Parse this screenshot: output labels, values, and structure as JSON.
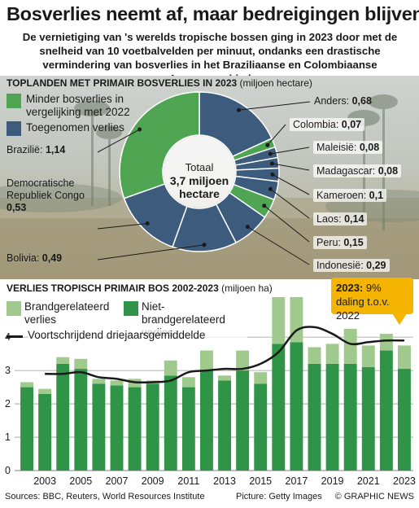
{
  "title": "Bosverlies neemt af, maar bedreigingen blijven",
  "subtitle": "De vernietiging van 's werelds tropische bossen ging  in 2023 door met de snelheid van 10 voetbalvelden per minuut, ondanks een drastische vermindering van bosverlies in het Braziliaanse en Colombiaanse Amazonegebied",
  "top_section": {
    "heading": "TOPLANDEN MET PRIMAIR BOSVERLIES IN 2023",
    "unit": "(miljoen hectare)",
    "legend": [
      {
        "label": "Minder bosverlies in vergelijking met 2022",
        "color": "#4fa552"
      },
      {
        "label": "Toegenomen verlies",
        "color": "#3d5c7d"
      }
    ],
    "center_label": "Totaal",
    "center_value": "3,7 miljoen hectare"
  },
  "bar_section": {
    "heading": "VERLIES TROPISCH PRIMAIR BOS 2002-2023",
    "unit": "(miljoen ha)",
    "callout_bold": "2023:",
    "callout_text": "9% daling t.o.v. 2022",
    "legend": [
      {
        "label": "Brandgerelateerd verlies",
        "color": "#9fc98d"
      },
      {
        "label": "Niet-brandgerelateerd verlies",
        "color": "#2f9447"
      },
      {
        "label": "Voortschrijdend driejaarsgemiddelde",
        "color": "#1a1a1a"
      }
    ]
  },
  "footer": {
    "sources": "Sources: BBC, Reuters, World Resources Institute",
    "picture": "Picture: Getty Images",
    "brand": "© GRAPHIC NEWS"
  },
  "chart_data": [
    {
      "type": "pie",
      "title": "TOPLANDEN MET PRIMAIR BOSVERLIES IN 2023",
      "unit": "(miljoen hectare)",
      "slices": [
        {
          "name": "Anders",
          "value": 0.68,
          "value_label": "0,68",
          "group": "Toegenomen verlies"
        },
        {
          "name": "Colombia",
          "value": 0.07,
          "value_label": "0,07",
          "group": "Minder bosverlies in vergelijking met 2022"
        },
        {
          "name": "Maleisië",
          "value": 0.08,
          "value_label": "0,08",
          "group": "Toegenomen verlies"
        },
        {
          "name": "Madagascar",
          "value": 0.08,
          "value_label": "0,08",
          "group": "Toegenomen verlies"
        },
        {
          "name": "Kameroen",
          "value": 0.1,
          "value_label": "0,1",
          "group": "Toegenomen verlies"
        },
        {
          "name": "Laos",
          "value": 0.14,
          "value_label": "0,14",
          "group": "Toegenomen verlies"
        },
        {
          "name": "Peru",
          "value": 0.15,
          "value_label": "0,15",
          "group": "Minder bosverlies in vergelijking met 2022"
        },
        {
          "name": "Indonesië",
          "value": 0.29,
          "value_label": "0,29",
          "group": "Toegenomen verlies"
        },
        {
          "name": "Bolivia",
          "value": 0.49,
          "value_label": "0,49",
          "group": "Toegenomen verlies"
        },
        {
          "name": "Democratische Republiek Congo",
          "value": 0.53,
          "value_label": "0,53",
          "group": "Toegenomen verlies"
        },
        {
          "name": "Brazilië",
          "value": 1.14,
          "value_label": "1,14",
          "group": "Minder bosverlies in vergelijking met 2022"
        }
      ],
      "total_label": "Totaal 3,7 miljoen hectare"
    },
    {
      "type": "bar",
      "stacked": true,
      "title": "VERLIES TROPISCH PRIMAIR BOS 2002-2023",
      "ylabel": "(miljoen ha)",
      "ylim": [
        0,
        5.2
      ],
      "yticks": [
        0,
        1,
        2,
        3,
        4
      ],
      "grid": true,
      "x": [
        2002,
        2003,
        2004,
        2005,
        2006,
        2007,
        2008,
        2009,
        2010,
        2011,
        2012,
        2013,
        2014,
        2015,
        2016,
        2017,
        2018,
        2019,
        2020,
        2021,
        2022,
        2023
      ],
      "xtick_labels": [
        "2003",
        "2005",
        "2007",
        "2009",
        "2011",
        "2013",
        "2015",
        "2017",
        "2019",
        "2021",
        "2023"
      ],
      "series": [
        {
          "name": "Niet-brandgerelateerd verlies",
          "values": [
            2.5,
            2.3,
            3.2,
            3.05,
            2.6,
            2.55,
            2.5,
            2.6,
            2.85,
            2.5,
            3.0,
            2.7,
            3.0,
            2.6,
            3.8,
            3.85,
            3.2,
            3.2,
            3.2,
            3.1,
            3.6,
            3.05
          ]
        },
        {
          "name": "Brandgerelateerd verlies",
          "values": [
            0.15,
            0.15,
            0.2,
            0.3,
            0.15,
            0.15,
            0.25,
            0.1,
            0.45,
            0.3,
            0.6,
            0.15,
            0.6,
            0.35,
            1.5,
            1.75,
            0.5,
            0.6,
            1.05,
            0.65,
            0.5,
            0.7
          ]
        },
        {
          "name": "Voortschrijdend driejaarsgemiddelde",
          "type": "line",
          "values": [
            null,
            2.9,
            2.9,
            2.95,
            2.8,
            2.75,
            2.65,
            2.65,
            2.7,
            2.95,
            3.0,
            3.05,
            3.05,
            3.2,
            3.55,
            4.2,
            4.3,
            4.1,
            3.8,
            3.85,
            3.9,
            3.9
          ]
        }
      ]
    }
  ]
}
